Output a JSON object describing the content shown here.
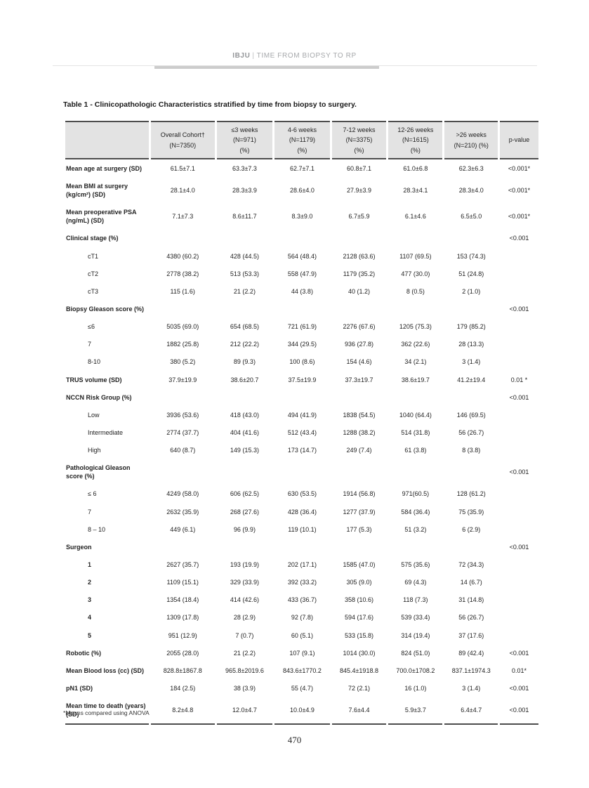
{
  "header": {
    "journal": "IBJU",
    "separator": "|",
    "article_title": "TIME FROM BIOPSY TO RP"
  },
  "table_title": "Table 1 - Clinicopathologic Characteristics stratified by time from biopsy to surgery.",
  "table": {
    "column_headers": [
      [
        ""
      ],
      [
        "Overall Cohort†",
        "(N=7350)"
      ],
      [
        "≤3 weeks",
        "(N=971)",
        "(%)"
      ],
      [
        "4-6 weeks",
        "(N=1179)",
        "(%)"
      ],
      [
        "7-12 weeks",
        "(N=3375)",
        "(%)"
      ],
      [
        "12-26 weeks",
        "(N=1615)",
        "(%)"
      ],
      [
        ">26 weeks",
        "(N=210) (%)"
      ],
      [
        "p-value"
      ]
    ],
    "rows": [
      {
        "label": "Mean age at surgery (SD)",
        "bold": true,
        "indent": 0,
        "values": [
          "61.5±7.1",
          "63.3±7.3",
          "62.7±7.1",
          "60.8±7.1",
          "61.0±6.8",
          "62.3±6.3"
        ],
        "p": "<0.001*"
      },
      {
        "label": "Mean BMI at surgery (kg/cm²) (SD)",
        "bold": true,
        "indent": 0,
        "values": [
          "28.1±4.0",
          "28.3±3.9",
          "28.6±4.0",
          "27.9±3.9",
          "28.3±4.1",
          "28.3±4.0"
        ],
        "p": "<0.001*"
      },
      {
        "label": "Mean preoperative PSA (ng/mL) (SD)",
        "bold": true,
        "indent": 0,
        "values": [
          "7.1±7.3",
          "8.6±11.7",
          "8.3±9.0",
          "6.7±5.9",
          "6.1±4.6",
          "6.5±5.0"
        ],
        "p": "<0.001*"
      },
      {
        "label": "Clinical stage (%)",
        "bold": true,
        "indent": 0,
        "values": [
          "",
          "",
          "",
          "",
          "",
          ""
        ],
        "p": "<0.001"
      },
      {
        "label": "cT1",
        "bold": false,
        "indent": 1,
        "values": [
          "4380 (60.2)",
          "428 (44.5)",
          "564 (48.4)",
          "2128 (63.6)",
          "1107 (69.5)",
          "153 (74.3)"
        ],
        "p": ""
      },
      {
        "label": "cT2",
        "bold": false,
        "indent": 1,
        "values": [
          "2778 (38.2)",
          "513 (53.3)",
          "558 (47.9)",
          "1179 (35.2)",
          "477 (30.0)",
          "51 (24.8)"
        ],
        "p": ""
      },
      {
        "label": "cT3",
        "bold": false,
        "indent": 1,
        "values": [
          "115 (1.6)",
          "21 (2.2)",
          "44 (3.8)",
          "40 (1.2)",
          "8 (0.5)",
          "2 (1.0)"
        ],
        "p": ""
      },
      {
        "label": "Biopsy Gleason score (%)",
        "bold": true,
        "indent": 0,
        "values": [
          "",
          "",
          "",
          "",
          "",
          ""
        ],
        "p": "<0.001"
      },
      {
        "label": "≤6",
        "bold": false,
        "indent": 1,
        "values": [
          "5035 (69.0)",
          "654 (68.5)",
          "721 (61.9)",
          "2276 (67.6)",
          "1205 (75.3)",
          "179 (85.2)"
        ],
        "p": ""
      },
      {
        "label": "7",
        "bold": false,
        "indent": 1,
        "values": [
          "1882 (25.8)",
          "212 (22.2)",
          "344 (29.5)",
          "936 (27.8)",
          "362 (22.6)",
          "28 (13.3)"
        ],
        "p": ""
      },
      {
        "label": "8-10",
        "bold": false,
        "indent": 1,
        "values": [
          "380 (5.2)",
          "89 (9.3)",
          "100 (8.6)",
          "154 (4.6)",
          "34 (2.1)",
          "3 (1.4)"
        ],
        "p": ""
      },
      {
        "label": "TRUS volume (SD)",
        "bold": true,
        "indent": 0,
        "values": [
          "37.9±19.9",
          "38.6±20.7",
          "37.5±19.9",
          "37.3±19.7",
          "38.6±19.7",
          "41.2±19.4"
        ],
        "p": "0.01 *"
      },
      {
        "label": "NCCN Risk Group (%)",
        "bold": true,
        "indent": 0,
        "values": [
          "",
          "",
          "",
          "",
          "",
          ""
        ],
        "p": "<0.001"
      },
      {
        "label": "Low",
        "bold": false,
        "indent": 1,
        "values": [
          "3936 (53.6)",
          "418 (43.0)",
          "494 (41.9)",
          "1838 (54.5)",
          "1040 (64.4)",
          "146 (69.5)"
        ],
        "p": ""
      },
      {
        "label": "Intermediate",
        "bold": false,
        "indent": 1,
        "values": [
          "2774 (37.7)",
          "404 (41.6)",
          "512 (43.4)",
          "1288 (38.2)",
          "514 (31.8)",
          "56 (26.7)"
        ],
        "p": ""
      },
      {
        "label": "High",
        "bold": false,
        "indent": 1,
        "values": [
          "640 (8.7)",
          "149 (15.3)",
          "173 (14.7)",
          "249 (7.4)",
          "61 (3.8)",
          "8 (3.8)"
        ],
        "p": ""
      },
      {
        "label": "Pathological Gleason score (%)",
        "bold": true,
        "indent": 0,
        "values": [
          "",
          "",
          "",
          "",
          "",
          ""
        ],
        "p": "<0.001"
      },
      {
        "label": "≤ 6",
        "bold": false,
        "indent": 1,
        "values": [
          "4249 (58.0)",
          "606 (62.5)",
          "630 (53.5)",
          "1914 (56.8)",
          "971(60.5)",
          "128 (61.2)"
        ],
        "p": ""
      },
      {
        "label": "7",
        "bold": false,
        "indent": 1,
        "values": [
          "2632 (35.9)",
          "268 (27.6)",
          "428 (36.4)",
          "1277 (37.9)",
          "584 (36.4)",
          "75 (35.9)"
        ],
        "p": ""
      },
      {
        "label": "8 – 10",
        "bold": false,
        "indent": 1,
        "values": [
          "449 (6.1)",
          "96 (9.9)",
          "119 (10.1)",
          "177 (5.3)",
          "51 (3.2)",
          "6 (2.9)"
        ],
        "p": ""
      },
      {
        "label": "Surgeon",
        "bold": true,
        "indent": 0,
        "values": [
          "",
          "",
          "",
          "",
          "",
          ""
        ],
        "p": "<0.001"
      },
      {
        "label": "1",
        "bold": true,
        "indent": 1,
        "values": [
          "2627 (35.7)",
          "193 (19.9)",
          "202 (17.1)",
          "1585 (47.0)",
          "575 (35.6)",
          "72 (34.3)"
        ],
        "p": ""
      },
      {
        "label": "2",
        "bold": true,
        "indent": 1,
        "values": [
          "1109 (15.1)",
          "329 (33.9)",
          "392 (33.2)",
          "305 (9.0)",
          "69 (4.3)",
          "14 (6.7)"
        ],
        "p": ""
      },
      {
        "label": "3",
        "bold": true,
        "indent": 1,
        "values": [
          "1354 (18.4)",
          "414 (42.6)",
          "433 (36.7)",
          "358 (10.6)",
          "118 (7.3)",
          "31 (14.8)"
        ],
        "p": ""
      },
      {
        "label": "4",
        "bold": true,
        "indent": 1,
        "values": [
          "1309 (17.8)",
          "28 (2.9)",
          "92 (7.8)",
          "594 (17.6)",
          "539 (33.4)",
          "56 (26.7)"
        ],
        "p": ""
      },
      {
        "label": "5",
        "bold": true,
        "indent": 1,
        "values": [
          "951 (12.9)",
          "7 (0.7)",
          "60 (5.1)",
          "533 (15.8)",
          "314 (19.4)",
          "37 (17.6)"
        ],
        "p": ""
      },
      {
        "label": "Robotic (%)",
        "bold": true,
        "indent": 0,
        "values": [
          "2055 (28.0)",
          "21 (2.2)",
          "107 (9.1)",
          "1014 (30.0)",
          "824 (51.0)",
          "89 (42.4)"
        ],
        "p": "<0.001"
      },
      {
        "label": "Mean Blood loss (cc) (SD)",
        "bold": true,
        "indent": 0,
        "values": [
          "828.8±1867.8",
          "965.8±2019.6",
          "843.6±1770.2",
          "845.4±1918.8",
          "700.0±1708.2",
          "837.1±1974.3"
        ],
        "p": "0.01*"
      },
      {
        "label": "pN1 (SD)",
        "bold": true,
        "indent": 0,
        "values": [
          "184 (2.5)",
          "38 (3.9)",
          "55 (4.7)",
          "72 (2.1)",
          "16 (1.0)",
          "3 (1.4)"
        ],
        "p": "<0.001"
      },
      {
        "label": "Mean time to death (years) (SD)",
        "bold": true,
        "indent": 0,
        "values": [
          "8.2±4.8",
          "12.0±4.7",
          "10.0±4.9",
          "7.6±4.4",
          "5.9±3.7",
          "6.4±4.7"
        ],
        "p": "<0.001"
      }
    ]
  },
  "footnote": "*Means compared using ANOVA",
  "page_number": "470",
  "colors": {
    "table_header_bg": "#e3e3e3",
    "table_rule_dark": "#4d4d4d",
    "running_header_gray": "#a6a8ab",
    "header_thick_bar": "#cccccc"
  }
}
